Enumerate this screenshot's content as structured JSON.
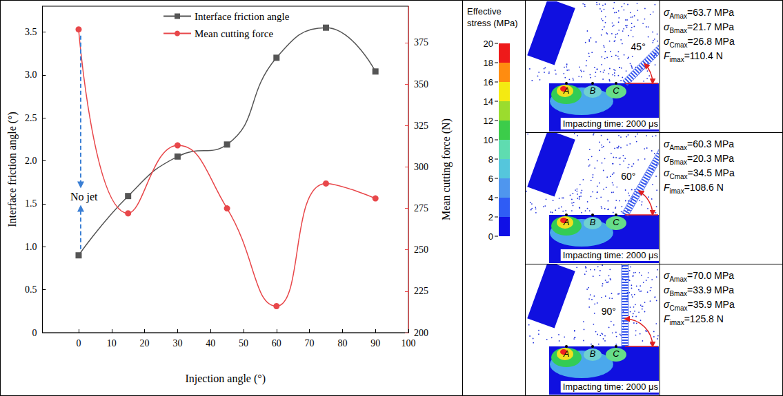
{
  "chart_data": {
    "type": "line",
    "xlabel": "Injection angle (°)",
    "ylabel": "Interface friction angle (°)",
    "y2label": "Mean cutting force (N)",
    "x": [
      0,
      15,
      30,
      45,
      60,
      75,
      90
    ],
    "xlim": [
      -11,
      100
    ],
    "xticks": [
      0,
      10,
      20,
      30,
      40,
      50,
      60,
      70,
      80,
      90,
      100
    ],
    "ylim": [
      0,
      3.8
    ],
    "yticks": [
      0,
      0.5,
      {
        "value": 1,
        "label": "1.0"
      },
      1.5,
      {
        "value": 2,
        "label": "2.0"
      },
      2.5,
      {
        "value": 3,
        "label": "3.0"
      },
      3.5
    ],
    "y2lim": [
      200,
      397
    ],
    "y2ticks": [
      200,
      225,
      250,
      275,
      300,
      325,
      350,
      375
    ],
    "series": [
      {
        "name": "Interface friction angle",
        "color": "#555555",
        "marker": "square",
        "values": [
          0.9,
          1.59,
          2.05,
          2.19,
          3.2,
          3.55,
          3.04
        ]
      },
      {
        "name": "Mean cutting force",
        "color": "#e8474a",
        "marker": "circle",
        "axis": "y2",
        "values": [
          383,
          272,
          313,
          275,
          216,
          290,
          281
        ]
      }
    ],
    "annotations": [
      {
        "text": "No jet",
        "x": 0
      }
    ],
    "legend": "top",
    "grid": false
  },
  "colorbar": {
    "title": "Effective stress (MPa)",
    "range": [
      0,
      20
    ],
    "ticks": [
      0,
      2,
      4,
      6,
      8,
      10,
      12,
      14,
      16,
      18,
      20
    ]
  },
  "panels": [
    {
      "angle": 45,
      "angle_label": "45°",
      "points": [
        "A",
        "B",
        "C"
      ],
      "time_label": "Impacting time: 2000 μs",
      "stats": [
        {
          "symbol": "σ",
          "sub": "Amax",
          "rest": "=63.7 MPa"
        },
        {
          "symbol": "σ",
          "sub": "Bmax",
          "rest": "=21.7 MPa"
        },
        {
          "symbol": "σ",
          "sub": "Cmax",
          "rest": "=26.8 MPa"
        },
        {
          "symbol": "F",
          "sub": "imax",
          "rest": "=110.4 N"
        }
      ]
    },
    {
      "angle": 60,
      "angle_label": "60°",
      "points": [
        "A",
        "B",
        "C"
      ],
      "time_label": "Impacting time: 2000 μs",
      "stats": [
        {
          "symbol": "σ",
          "sub": "Amax",
          "rest": "=60.3 MPa"
        },
        {
          "symbol": "σ",
          "sub": "Bmax",
          "rest": "=20.3 MPa"
        },
        {
          "symbol": "σ",
          "sub": "Cmax",
          "rest": "=34.5 MPa"
        },
        {
          "symbol": "F",
          "sub": "imax",
          "rest": "=108.6 N"
        }
      ]
    },
    {
      "angle": 90,
      "angle_label": "90°",
      "points": [
        "A",
        "B",
        "C"
      ],
      "time_label": "Impacting time: 2000 μs",
      "stats": [
        {
          "symbol": "σ",
          "sub": "Amax",
          "rest": "=70.0 MPa"
        },
        {
          "symbol": "σ",
          "sub": "Bmax",
          "rest": "=33.9 MPa"
        },
        {
          "symbol": "σ",
          "sub": "Cmax",
          "rest": "=35.9 MPa"
        },
        {
          "symbol": "F",
          "sub": "imax",
          "rest": "=125.8 N"
        }
      ]
    }
  ]
}
